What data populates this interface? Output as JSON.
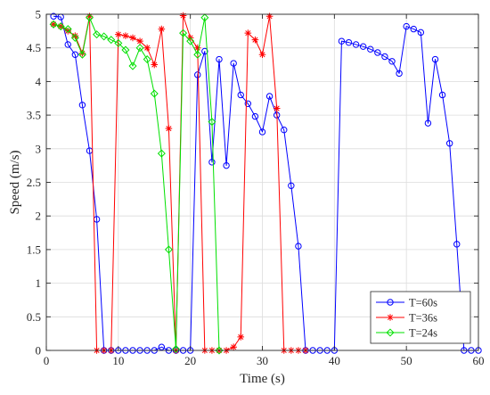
{
  "chart_data": {
    "type": "line",
    "xlabel": "Time (s)",
    "ylabel": "Speed (m/s)",
    "xlim": [
      0,
      60
    ],
    "ylim": [
      0,
      5
    ],
    "xticks": [
      0,
      10,
      20,
      30,
      40,
      50,
      60
    ],
    "yticks": [
      0,
      0.5,
      1,
      1.5,
      2,
      2.5,
      3,
      3.5,
      4,
      4.5,
      5
    ],
    "grid": true,
    "legend_position": "bottom-right",
    "series": [
      {
        "name": "T=60s",
        "color": "#0000ff",
        "marker": "circle",
        "x": [
          1,
          2,
          3,
          4,
          5,
          6,
          7,
          8,
          9,
          10,
          11,
          12,
          13,
          14,
          15,
          16,
          17,
          18,
          19,
          20,
          21,
          22,
          23,
          24,
          25,
          26,
          27,
          28,
          29,
          30,
          31,
          32,
          33,
          34,
          35,
          36,
          37,
          38,
          39,
          40,
          41,
          42,
          43,
          44,
          45,
          46,
          47,
          48,
          49,
          50,
          51,
          52,
          53,
          54,
          55,
          56,
          57,
          58,
          59,
          60
        ],
        "y": [
          4.97,
          4.96,
          4.55,
          4.4,
          3.65,
          2.97,
          1.95,
          0,
          0,
          0,
          0,
          0,
          0,
          0,
          0,
          0.05,
          0,
          0,
          0,
          0,
          4.1,
          4.45,
          2.8,
          4.33,
          2.75,
          4.27,
          3.8,
          3.67,
          3.48,
          3.25,
          3.78,
          3.5,
          3.28,
          2.45,
          1.55,
          0,
          0,
          0,
          0,
          0,
          4.6,
          4.58,
          4.55,
          4.52,
          4.48,
          4.43,
          4.37,
          4.3,
          4.12,
          4.82,
          4.78,
          4.73,
          3.38,
          4.33,
          3.8,
          3.08,
          1.58,
          0,
          0,
          0
        ]
      },
      {
        "name": "T=36s",
        "color": "#ff0000",
        "marker": "asterisk",
        "x": [
          1,
          2,
          3,
          4,
          5,
          6,
          7,
          8,
          9,
          10,
          11,
          12,
          13,
          14,
          15,
          16,
          17,
          18,
          19,
          20,
          21,
          22,
          23,
          24,
          25,
          26,
          27,
          28,
          29,
          30,
          31,
          32,
          33,
          34,
          35,
          36
        ],
        "y": [
          4.85,
          4.82,
          4.75,
          4.68,
          4.42,
          4.97,
          0,
          0,
          0,
          4.7,
          4.68,
          4.65,
          4.6,
          4.5,
          4.25,
          4.78,
          3.3,
          0,
          4.98,
          4.65,
          4.5,
          0,
          0,
          0,
          0,
          0.05,
          0.2,
          4.72,
          4.62,
          4.4,
          4.97,
          3.6,
          0,
          0,
          0,
          0
        ]
      },
      {
        "name": "T=24s",
        "color": "#00e000",
        "marker": "diamond",
        "x": [
          1,
          2,
          3,
          4,
          5,
          6,
          7,
          8,
          9,
          10,
          11,
          12,
          13,
          14,
          15,
          16,
          17,
          18,
          19,
          20,
          21,
          22,
          23,
          24
        ],
        "y": [
          4.85,
          4.82,
          4.78,
          4.65,
          4.4,
          4.95,
          4.7,
          4.67,
          4.62,
          4.57,
          4.47,
          4.23,
          4.5,
          4.33,
          3.82,
          2.93,
          1.5,
          0.02,
          4.72,
          4.6,
          4.4,
          4.95,
          3.4,
          0
        ]
      }
    ]
  }
}
